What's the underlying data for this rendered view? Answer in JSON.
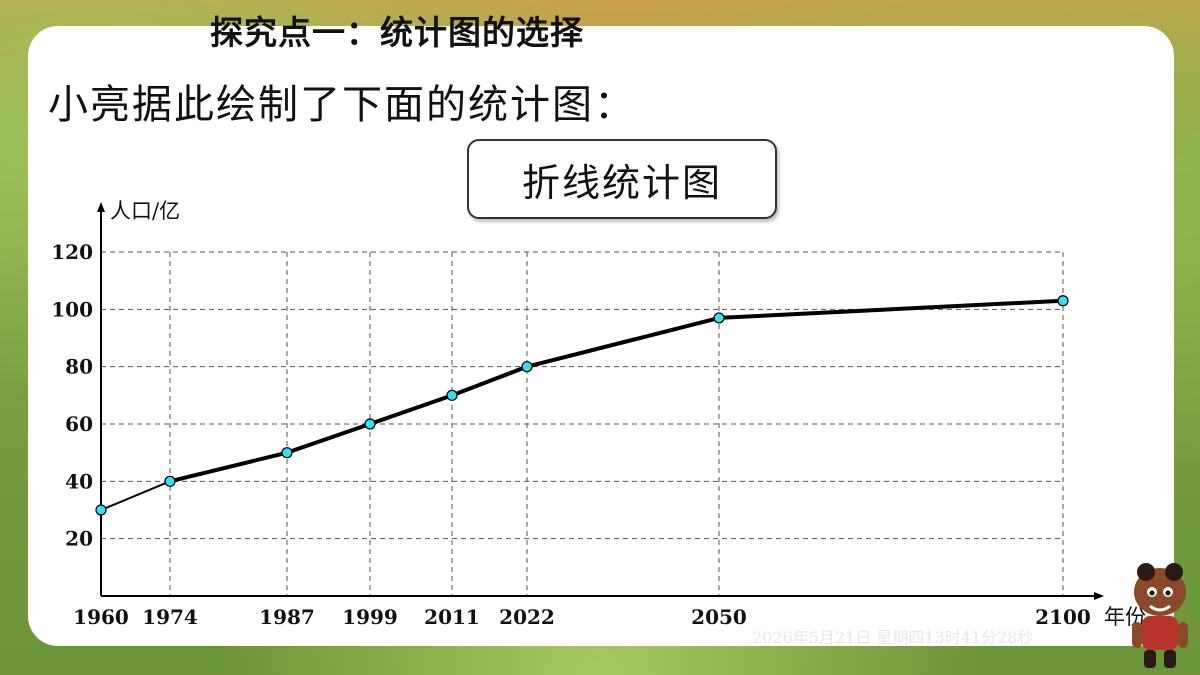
{
  "slide": {
    "heading": "探究点一：统计图的选择",
    "subtitle": "小亮据此绘制了下面的统计图：",
    "chart_box_label": "折线统计图",
    "timestamp": "2026年5月21日 星期四13时41分28秒"
  },
  "colors": {
    "marker": "#33e0ef",
    "line": "#000000",
    "grid": "#555555"
  },
  "chart_data": {
    "type": "line",
    "title": "折线统计图",
    "ylabel": "人口/亿",
    "xlabel": "年份",
    "x": [
      1960,
      1974,
      1987,
      1999,
      2011,
      2022,
      2050,
      2100
    ],
    "x_labels": [
      "1960",
      "1974",
      "1987",
      "1999",
      "2011",
      "2022",
      "2050",
      "2100"
    ],
    "values": [
      30,
      40,
      50,
      60,
      70,
      80,
      97,
      103
    ],
    "yticks": [
      20,
      40,
      60,
      80,
      100,
      120
    ],
    "ytick_labels": [
      "20",
      "40",
      "60",
      "80",
      "100",
      "120"
    ],
    "ylim": [
      0,
      120
    ],
    "grid": "dashed"
  }
}
